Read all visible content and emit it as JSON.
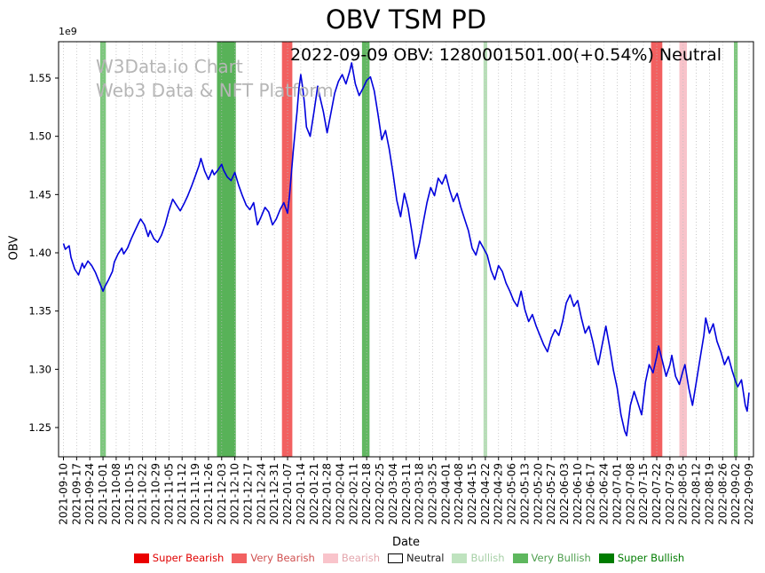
{
  "figure": {
    "title": "OBV TSM PD",
    "subtitle": "2022-09-09 OBV: 1280001501.00(+0.54%) Neutral",
    "watermark_line1": "W3Data.io Chart",
    "watermark_line2": "Web3 Data & NFT Platform"
  },
  "chart_data": {
    "type": "line",
    "title": "OBV TSM PD",
    "annotation": "2022-09-09 OBV: 1280001501.00(+0.54%) Neutral",
    "xlabel": "Date",
    "ylabel": "OBV",
    "y_offset_label": "1e9",
    "unit": "1e9",
    "grid": "vertical-dotted",
    "line_color": "#0000dd",
    "ylim": [
      1.225,
      1.581
    ],
    "y_ticks": [
      1.25,
      1.3,
      1.35,
      1.4,
      1.45,
      1.5,
      1.55
    ],
    "x_start_date": "2021-09-10",
    "days_span": 364,
    "x_tick_labels": [
      "2021-09-10",
      "2021-09-17",
      "2021-09-24",
      "2021-10-01",
      "2021-10-08",
      "2021-10-15",
      "2021-10-22",
      "2021-10-29",
      "2021-11-05",
      "2021-11-12",
      "2021-11-19",
      "2021-11-26",
      "2021-12-03",
      "2021-12-10",
      "2021-12-17",
      "2021-12-24",
      "2021-12-31",
      "2022-01-07",
      "2022-01-14",
      "2022-01-21",
      "2022-01-28",
      "2022-02-04",
      "2022-02-11",
      "2022-02-18",
      "2022-02-25",
      "2022-03-04",
      "2022-03-11",
      "2022-03-18",
      "2022-03-25",
      "2022-04-01",
      "2022-04-08",
      "2022-04-15",
      "2022-04-22",
      "2022-04-29",
      "2022-05-06",
      "2022-05-13",
      "2022-05-20",
      "2022-05-27",
      "2022-06-03",
      "2022-06-10",
      "2022-06-17",
      "2022-06-24",
      "2022-07-01",
      "2022-07-08",
      "2022-07-15",
      "2022-07-22",
      "2022-07-29",
      "2022-08-05",
      "2022-08-12",
      "2022-08-19",
      "2022-08-26",
      "2022-09-02",
      "2022-09-09"
    ],
    "series": [
      {
        "name": "OBV",
        "points": [
          [
            0,
            1.408
          ],
          [
            1,
            1.403
          ],
          [
            3,
            1.406
          ],
          [
            4,
            1.396
          ],
          [
            6,
            1.386
          ],
          [
            8,
            1.381
          ],
          [
            10,
            1.391
          ],
          [
            11,
            1.387
          ],
          [
            13,
            1.393
          ],
          [
            15,
            1.389
          ],
          [
            17,
            1.383
          ],
          [
            19,
            1.375
          ],
          [
            21,
            1.367
          ],
          [
            22,
            1.371
          ],
          [
            24,
            1.377
          ],
          [
            26,
            1.384
          ],
          [
            27,
            1.392
          ],
          [
            29,
            1.399
          ],
          [
            31,
            1.404
          ],
          [
            32,
            1.399
          ],
          [
            34,
            1.404
          ],
          [
            36,
            1.412
          ],
          [
            38,
            1.419
          ],
          [
            40,
            1.426
          ],
          [
            41,
            1.429
          ],
          [
            43,
            1.424
          ],
          [
            45,
            1.414
          ],
          [
            46,
            1.419
          ],
          [
            48,
            1.412
          ],
          [
            50,
            1.409
          ],
          [
            52,
            1.415
          ],
          [
            54,
            1.424
          ],
          [
            56,
            1.436
          ],
          [
            58,
            1.446
          ],
          [
            60,
            1.441
          ],
          [
            62,
            1.436
          ],
          [
            64,
            1.442
          ],
          [
            66,
            1.449
          ],
          [
            68,
            1.457
          ],
          [
            70,
            1.466
          ],
          [
            72,
            1.475
          ],
          [
            73,
            1.481
          ],
          [
            75,
            1.47
          ],
          [
            77,
            1.463
          ],
          [
            79,
            1.471
          ],
          [
            80,
            1.467
          ],
          [
            82,
            1.471
          ],
          [
            84,
            1.476
          ],
          [
            85,
            1.471
          ],
          [
            87,
            1.465
          ],
          [
            89,
            1.462
          ],
          [
            91,
            1.469
          ],
          [
            93,
            1.458
          ],
          [
            95,
            1.449
          ],
          [
            97,
            1.441
          ],
          [
            99,
            1.437
          ],
          [
            101,
            1.443
          ],
          [
            103,
            1.424
          ],
          [
            105,
            1.431
          ],
          [
            107,
            1.439
          ],
          [
            109,
            1.435
          ],
          [
            111,
            1.424
          ],
          [
            113,
            1.429
          ],
          [
            115,
            1.437
          ],
          [
            117,
            1.443
          ],
          [
            119,
            1.434
          ],
          [
            120,
            1.449
          ],
          [
            121,
            1.468
          ],
          [
            122,
            1.487
          ],
          [
            123,
            1.504
          ],
          [
            124,
            1.521
          ],
          [
            125,
            1.541
          ],
          [
            126,
            1.553
          ],
          [
            127,
            1.542
          ],
          [
            128,
            1.528
          ],
          [
            129,
            1.508
          ],
          [
            131,
            1.5
          ],
          [
            133,
            1.521
          ],
          [
            135,
            1.543
          ],
          [
            136,
            1.535
          ],
          [
            138,
            1.521
          ],
          [
            140,
            1.503
          ],
          [
            142,
            1.52
          ],
          [
            144,
            1.537
          ],
          [
            146,
            1.547
          ],
          [
            148,
            1.553
          ],
          [
            150,
            1.545
          ],
          [
            152,
            1.556
          ],
          [
            153,
            1.563
          ],
          [
            155,
            1.545
          ],
          [
            157,
            1.535
          ],
          [
            159,
            1.541
          ],
          [
            161,
            1.548
          ],
          [
            163,
            1.551
          ],
          [
            165,
            1.539
          ],
          [
            167,
            1.519
          ],
          [
            169,
            1.497
          ],
          [
            171,
            1.505
          ],
          [
            173,
            1.489
          ],
          [
            175,
            1.468
          ],
          [
            177,
            1.445
          ],
          [
            179,
            1.431
          ],
          [
            181,
            1.451
          ],
          [
            183,
            1.438
          ],
          [
            185,
            1.418
          ],
          [
            187,
            1.395
          ],
          [
            189,
            1.408
          ],
          [
            191,
            1.426
          ],
          [
            193,
            1.443
          ],
          [
            195,
            1.456
          ],
          [
            197,
            1.449
          ],
          [
            199,
            1.464
          ],
          [
            201,
            1.459
          ],
          [
            203,
            1.467
          ],
          [
            205,
            1.454
          ],
          [
            207,
            1.444
          ],
          [
            209,
            1.451
          ],
          [
            211,
            1.439
          ],
          [
            213,
            1.429
          ],
          [
            215,
            1.419
          ],
          [
            217,
            1.404
          ],
          [
            219,
            1.398
          ],
          [
            221,
            1.41
          ],
          [
            223,
            1.404
          ],
          [
            225,
            1.398
          ],
          [
            227,
            1.385
          ],
          [
            229,
            1.377
          ],
          [
            231,
            1.389
          ],
          [
            233,
            1.384
          ],
          [
            235,
            1.374
          ],
          [
            237,
            1.367
          ],
          [
            239,
            1.359
          ],
          [
            241,
            1.354
          ],
          [
            243,
            1.367
          ],
          [
            245,
            1.351
          ],
          [
            247,
            1.341
          ],
          [
            249,
            1.347
          ],
          [
            251,
            1.337
          ],
          [
            253,
            1.329
          ],
          [
            255,
            1.321
          ],
          [
            257,
            1.315
          ],
          [
            259,
            1.327
          ],
          [
            261,
            1.334
          ],
          [
            263,
            1.329
          ],
          [
            265,
            1.341
          ],
          [
            267,
            1.357
          ],
          [
            269,
            1.364
          ],
          [
            271,
            1.354
          ],
          [
            273,
            1.359
          ],
          [
            275,
            1.344
          ],
          [
            277,
            1.331
          ],
          [
            279,
            1.337
          ],
          [
            281,
            1.324
          ],
          [
            283,
            1.309
          ],
          [
            284,
            1.304
          ],
          [
            286,
            1.321
          ],
          [
            288,
            1.337
          ],
          [
            290,
            1.319
          ],
          [
            292,
            1.299
          ],
          [
            294,
            1.284
          ],
          [
            296,
            1.261
          ],
          [
            298,
            1.247
          ],
          [
            299,
            1.243
          ],
          [
            301,
            1.269
          ],
          [
            303,
            1.281
          ],
          [
            305,
            1.271
          ],
          [
            307,
            1.261
          ],
          [
            309,
            1.289
          ],
          [
            311,
            1.304
          ],
          [
            313,
            1.297
          ],
          [
            315,
            1.311
          ],
          [
            316,
            1.32
          ],
          [
            318,
            1.307
          ],
          [
            320,
            1.294
          ],
          [
            322,
            1.304
          ],
          [
            323,
            1.312
          ],
          [
            325,
            1.294
          ],
          [
            327,
            1.287
          ],
          [
            329,
            1.299
          ],
          [
            330,
            1.304
          ],
          [
            332,
            1.284
          ],
          [
            334,
            1.269
          ],
          [
            336,
            1.289
          ],
          [
            338,
            1.309
          ],
          [
            340,
            1.329
          ],
          [
            341,
            1.344
          ],
          [
            343,
            1.331
          ],
          [
            345,
            1.339
          ],
          [
            347,
            1.324
          ],
          [
            349,
            1.315
          ],
          [
            351,
            1.304
          ],
          [
            353,
            1.311
          ],
          [
            355,
            1.299
          ],
          [
            357,
            1.289
          ],
          [
            358,
            1.285
          ],
          [
            360,
            1.291
          ],
          [
            362,
            1.269
          ],
          [
            363,
            1.264
          ],
          [
            364,
            1.28
          ]
        ]
      }
    ],
    "bands": [
      {
        "center_date": "2021-10-01",
        "label": "Very Bullish",
        "color": "#7ec87e",
        "start_day": 19.5,
        "end_day": 22.5
      },
      {
        "center_date": "2021-12-03/2021-12-10",
        "label": "Very Bullish",
        "color": "#58b258",
        "start_day": 81.5,
        "end_day": 91.5
      },
      {
        "center_date": "2022-01-07",
        "label": "Very Bearish",
        "color": "#f26060",
        "start_day": 116,
        "end_day": 121.5
      },
      {
        "center_date": "2022-02-18",
        "label": "Very Bullish",
        "color": "#62b862",
        "start_day": 158.5,
        "end_day": 162.5
      },
      {
        "center_date": "2022-04-22",
        "label": "Bullish",
        "color": "#b9e0b9",
        "start_day": 223,
        "end_day": 225
      },
      {
        "center_date": "2022-07-22",
        "label": "Very Bearish",
        "color": "#f26060",
        "start_day": 312,
        "end_day": 318
      },
      {
        "center_date": "2022-08-05",
        "label": "Bearish",
        "color": "#f8c3ca",
        "start_day": 327,
        "end_day": 331
      },
      {
        "center_date": "2022-09-02",
        "label": "Very Bullish",
        "color": "#7ec87e",
        "start_day": 356,
        "end_day": 358
      }
    ],
    "legend": [
      {
        "label": "Super Bearish",
        "swatch": "#ea0000",
        "text": "#e00000",
        "swatch_border": "none"
      },
      {
        "label": "Very Bearish",
        "swatch": "#f26161",
        "text": "#d05050",
        "swatch_border": "none"
      },
      {
        "label": "Bearish",
        "swatch": "#f9c4cb",
        "text": "#e4a6ad",
        "swatch_border": "none"
      },
      {
        "label": "Neutral",
        "swatch": "#ffffff",
        "text": "#1a1a1a",
        "swatch_border": "#000000"
      },
      {
        "label": "Bullish",
        "swatch": "#bfe3bf",
        "text": "#a5cfa5",
        "swatch_border": "none"
      },
      {
        "label": "Very Bullish",
        "swatch": "#5eb75e",
        "text": "#4f9f4f",
        "swatch_border": "none"
      },
      {
        "label": "Super Bullish",
        "swatch": "#007c00",
        "text": "#007c00",
        "swatch_border": "none"
      }
    ]
  }
}
